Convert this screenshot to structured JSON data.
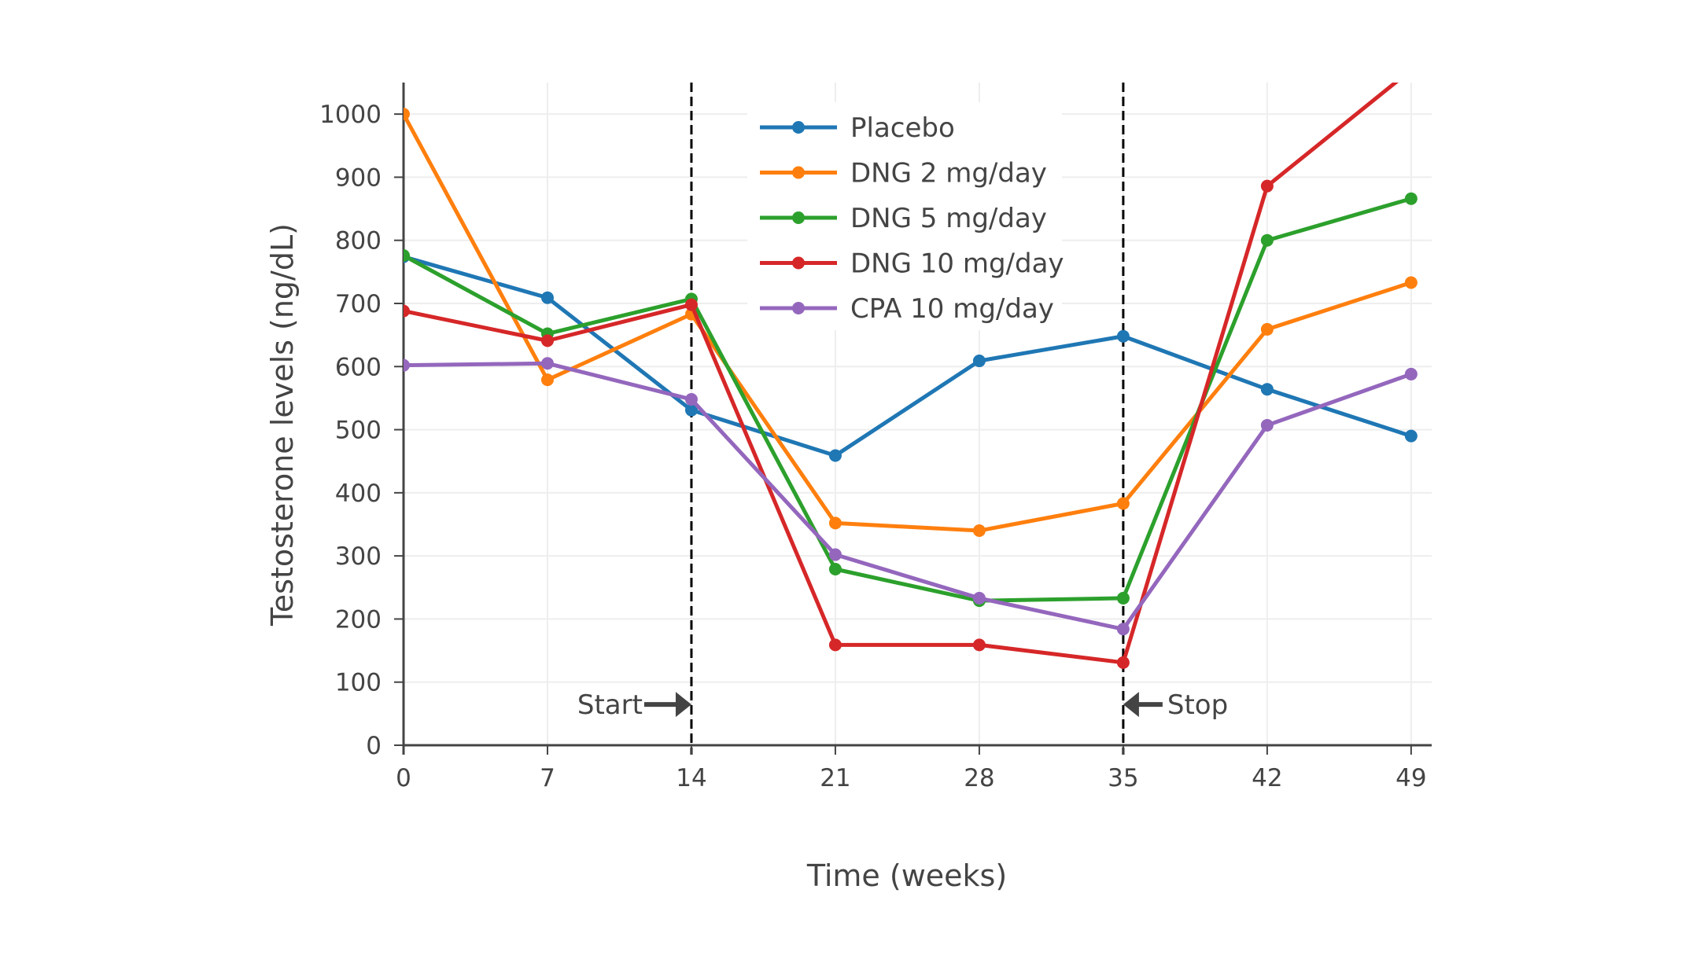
{
  "chart_data": {
    "type": "line",
    "xlabel": "Time (weeks)",
    "ylabel": "Testosterone levels (ng/dL)",
    "x": [
      0,
      7,
      14,
      21,
      28,
      35,
      42,
      49
    ],
    "xticks": [
      "0",
      "7",
      "14",
      "21",
      "28",
      "35",
      "42",
      "49"
    ],
    "yticks": [
      "0",
      "100",
      "200",
      "300",
      "400",
      "500",
      "600",
      "700",
      "800",
      "900",
      "1000"
    ],
    "xlim": [
      0,
      50
    ],
    "ylim": [
      0,
      1050
    ],
    "grid": true,
    "legend_position": "top-center",
    "series": [
      {
        "name": "Placebo",
        "color": "#1f77b4",
        "values": [
          774,
          709,
          531,
          459,
          609,
          648,
          564,
          490
        ]
      },
      {
        "name": "DNG 2 mg/day",
        "color": "#ff7f0e",
        "values": [
          1000,
          579,
          683,
          352,
          340,
          383,
          659,
          733
        ]
      },
      {
        "name": "DNG 5 mg/day",
        "color": "#2ca02c",
        "values": [
          776,
          652,
          707,
          279,
          229,
          233,
          800,
          866
        ]
      },
      {
        "name": "DNG 10 mg/day",
        "color": "#d62728",
        "values": [
          688,
          641,
          698,
          159,
          159,
          131,
          886,
          1070
        ]
      },
      {
        "name": "CPA 10 mg/day",
        "color": "#9467bd",
        "values": [
          602,
          605,
          548,
          302,
          233,
          184,
          507,
          588
        ]
      }
    ],
    "annotations": [
      {
        "text": "Start",
        "x": 14,
        "arrow": "right"
      },
      {
        "text": "Stop",
        "x": 35,
        "arrow": "left"
      }
    ],
    "vlines": [
      14,
      35
    ]
  }
}
